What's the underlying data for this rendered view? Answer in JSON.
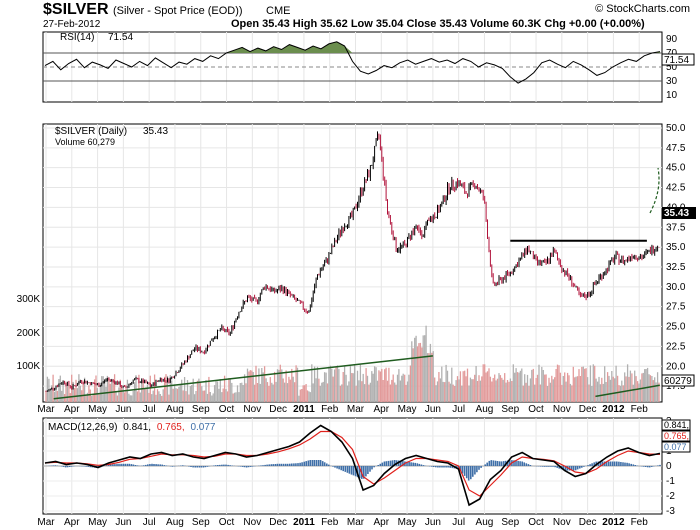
{
  "header": {
    "symbol": "$SILVER",
    "description": "(Silver - Spot Price (EOD))",
    "exchange": "CME",
    "watermark": "© StockCharts.com",
    "date": "27-Feb-2012",
    "quote": "Open 35.43  High 35.62  Low 35.04  Close 35.43  Volume 60.3K  Chg +0.00 (+0.00%)"
  },
  "chart_data": [
    {
      "type": "line",
      "title": "RSI(14) 71.54",
      "legend": "RSI(14)",
      "value_label": "71.54",
      "ylim": [
        0,
        100
      ],
      "yticks": [
        90,
        70,
        50,
        30,
        10
      ],
      "reference_lines": [
        70,
        50,
        30
      ],
      "series": [
        {
          "name": "RSI(14)",
          "values": [
            52,
            58,
            46,
            55,
            61,
            49,
            57,
            53,
            48,
            60,
            55,
            50,
            58,
            52,
            63,
            56,
            49,
            57,
            54,
            62,
            58,
            66,
            62,
            70,
            74,
            78,
            72,
            77,
            73,
            79,
            75,
            82,
            78,
            74,
            80,
            76,
            83,
            86,
            80,
            58,
            44,
            40,
            45,
            52,
            49,
            56,
            60,
            54,
            58,
            62,
            57,
            60,
            55,
            62,
            58,
            50,
            56,
            53,
            48,
            36,
            27,
            33,
            42,
            56,
            60,
            54,
            49,
            58,
            53,
            46,
            38,
            42,
            50,
            56,
            61,
            58,
            66,
            70,
            72
          ]
        }
      ],
      "months": [
        "Mar",
        "Apr",
        "May",
        "Jun",
        "Jul",
        "Aug",
        "Sep",
        "Oct",
        "Nov",
        "Dec",
        "2011",
        "Feb",
        "Mar",
        "Apr",
        "May",
        "Jun",
        "Jul",
        "Aug",
        "Sep",
        "Oct",
        "Nov",
        "Dec",
        "2012",
        "Feb"
      ]
    },
    {
      "type": "line",
      "title": "$SILVER (Daily) 35.43",
      "legend": "$SILVER (Daily)",
      "value_label": "35.43",
      "volume_legend": "Volume 60,279",
      "volume_value_label": "60279",
      "ylim": [
        15.5,
        50.5
      ],
      "yticks": [
        50.0,
        47.5,
        45.0,
        42.5,
        40.0,
        37.5,
        35.0,
        32.5,
        30.0,
        27.5,
        25.0,
        22.5,
        20.0,
        17.5
      ],
      "volume_ticks": [
        "300K",
        "200K",
        "100K"
      ],
      "series": [
        {
          "name": "$SILVER",
          "values": [
            16.8,
            17.4,
            18.1,
            17.3,
            18.2,
            17.9,
            17.6,
            18.4,
            18.0,
            17.2,
            18.3,
            18.1,
            17.5,
            18.4,
            18.2,
            19.4,
            20.8,
            22.3,
            21.8,
            23.5,
            24.7,
            24.1,
            26.9,
            28.6,
            28.1,
            30.2,
            29.4,
            29.8,
            28.8,
            27.8,
            26.8,
            31.5,
            33.2,
            35.6,
            37.8,
            38.9,
            42.1,
            44.6,
            49.2,
            39.5,
            34.8,
            35.2,
            37.4,
            36.8,
            38.6,
            39.9,
            42.6,
            43.2,
            41.8,
            43.1,
            41.2,
            30.1,
            30.9,
            31.8,
            33.2,
            34.9,
            33.1,
            32.8,
            34.5,
            32.2,
            30.8,
            28.6,
            29.1,
            30.9,
            32.2,
            33.8,
            33.2,
            34.1,
            33.7,
            34.5,
            35.43
          ]
        }
      ],
      "trendlines": [
        {
          "name": "lower-trend-1",
          "from": [
            0.3,
            15.9
          ],
          "to": [
            15.0,
            21.3
          ]
        },
        {
          "name": "lower-trend-2",
          "from": [
            21.3,
            16.2
          ],
          "to": [
            23.8,
            17.6
          ]
        },
        {
          "name": "resistance",
          "from": [
            18.0,
            35.8
          ],
          "to": [
            23.3,
            35.8
          ]
        }
      ],
      "months": [
        "Mar",
        "Apr",
        "May",
        "Jun",
        "Jul",
        "Aug",
        "Sep",
        "Oct",
        "Nov",
        "Dec",
        "2011",
        "Feb",
        "Mar",
        "Apr",
        "May",
        "Jun",
        "Jul",
        "Aug",
        "Sep",
        "Oct",
        "Nov",
        "Dec",
        "2012",
        "Feb"
      ]
    },
    {
      "type": "line",
      "title": "MACD(12,26,9) 0.841, 0.765, 0.077",
      "legend_prefix": "MACD(12,26,9)",
      "macd_label": "0.841,",
      "signal_label": "0.765,",
      "hist_label": "0.077",
      "ylim": [
        -3.2,
        3.2
      ],
      "yticks": [
        3,
        2,
        1,
        0,
        -1,
        -2,
        -3
      ],
      "series": [
        {
          "name": "MACD",
          "values": [
            0.2,
            0.3,
            0.1,
            0.2,
            0.1,
            -0.1,
            0.2,
            0.4,
            0.6,
            0.5,
            0.8,
            0.9,
            0.7,
            0.8,
            0.6,
            0.5,
            0.7,
            0.9,
            0.8,
            0.6,
            0.7,
            0.9,
            1.1,
            1.3,
            1.6,
            2.2,
            2.7,
            2.3,
            1.6,
            0.5,
            -1.6,
            -1.3,
            -0.5,
            0.1,
            0.5,
            0.7,
            0.5,
            0.3,
            0.2,
            -0.2,
            -2.6,
            -2.2,
            -0.9,
            -0.3,
            0.6,
            0.9,
            0.5,
            0.4,
            0.3,
            -0.3,
            -0.7,
            -0.5,
            0.1,
            0.6,
            1.0,
            1.2,
            0.9,
            0.7,
            0.84
          ]
        },
        {
          "name": "Signal",
          "values": [
            0.2,
            0.25,
            0.2,
            0.2,
            0.15,
            0.05,
            0.1,
            0.25,
            0.45,
            0.5,
            0.65,
            0.8,
            0.75,
            0.75,
            0.7,
            0.6,
            0.65,
            0.8,
            0.8,
            0.7,
            0.7,
            0.8,
            0.95,
            1.15,
            1.4,
            1.8,
            2.3,
            2.3,
            1.9,
            1.1,
            -0.7,
            -1.2,
            -0.8,
            -0.3,
            0.2,
            0.5,
            0.5,
            0.4,
            0.3,
            0.0,
            -1.6,
            -2.0,
            -1.3,
            -0.6,
            0.2,
            0.6,
            0.5,
            0.45,
            0.35,
            0.0,
            -0.4,
            -0.5,
            -0.2,
            0.3,
            0.7,
            1.0,
            0.9,
            0.8,
            0.77
          ]
        }
      ],
      "months": [
        "Mar",
        "Apr",
        "May",
        "Jun",
        "Jul",
        "Aug",
        "Sep",
        "Oct",
        "Nov",
        "Dec",
        "2011",
        "Feb",
        "Mar",
        "Apr",
        "May",
        "Jun",
        "Jul",
        "Aug",
        "Sep",
        "Oct",
        "Nov",
        "Dec",
        "2012",
        "Feb"
      ]
    }
  ],
  "colors": {
    "rsi_fill": "#6b8e4e",
    "up_candle": "#000000",
    "down_candle": "#b0123a",
    "volume_up": "#b0b0b0",
    "volume_down": "#e29a9a",
    "trend": "#1f5c1f",
    "macd_signal": "#e0201b",
    "macd_hist": "#3f6fa8",
    "label_box": "#000000"
  }
}
